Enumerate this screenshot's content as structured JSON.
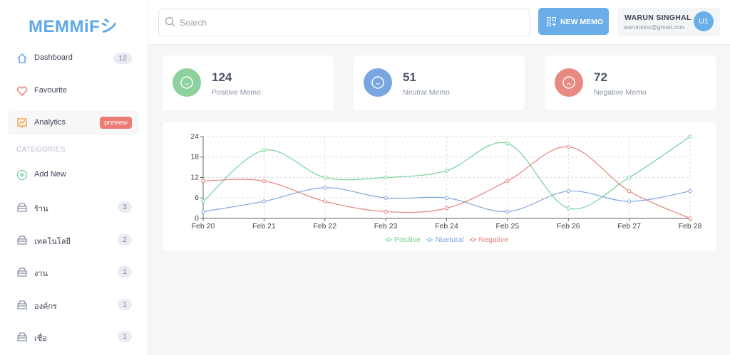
{
  "sidebar": {
    "logo": "MEMMiFシ",
    "nav": [
      {
        "label": "Dashboard",
        "badge": 12
      },
      {
        "label": "Favourite"
      },
      {
        "label": "Analytics",
        "badge": "preview"
      }
    ],
    "categories_title": "CATEGORIES",
    "add_new": "Add New",
    "categories": [
      {
        "label": "ร้าน",
        "count": 3
      },
      {
        "label": "เทคโนโลยี",
        "count": 2
      },
      {
        "label": "งาน",
        "count": 1
      },
      {
        "label": "องค์กร",
        "count": 1
      },
      {
        "label": "เชื่อ",
        "count": 1
      }
    ]
  },
  "header": {
    "search_placeholder": "Search",
    "new_memo": "NEW MEMO",
    "user": {
      "name": "WARUN SINGHAL",
      "email": "warunsinx@gmail.com",
      "avatar": "U1"
    }
  },
  "stats": [
    {
      "value": 124,
      "label": "Positive Memo"
    },
    {
      "value": 51,
      "label": "Neutral Memo"
    },
    {
      "value": 72,
      "label": "Negative Memo"
    }
  ],
  "chart_data": {
    "type": "line",
    "categories": [
      "Feb 20",
      "Feb 21",
      "Feb 22",
      "Feb 23",
      "Feb 24",
      "Feb 25",
      "Feb 26",
      "Feb 27",
      "Feb 28"
    ],
    "series": [
      {
        "name": "Positive",
        "color": "#72d29a",
        "values": [
          5,
          20,
          12,
          12,
          14,
          22,
          3,
          12,
          24
        ]
      },
      {
        "name": "Nuetural",
        "color": "#7ea6e0",
        "values": [
          2,
          5,
          9,
          6,
          6,
          2,
          8,
          5,
          8
        ]
      },
      {
        "name": "Negative",
        "color": "#e6837b",
        "values": [
          11,
          11,
          5,
          2,
          3,
          11,
          21,
          8,
          0
        ]
      }
    ],
    "ylim": [
      0,
      24
    ],
    "yticks": [
      0,
      6,
      12,
      18,
      24
    ],
    "grid": true,
    "smooth": true,
    "legend": "bottom"
  }
}
